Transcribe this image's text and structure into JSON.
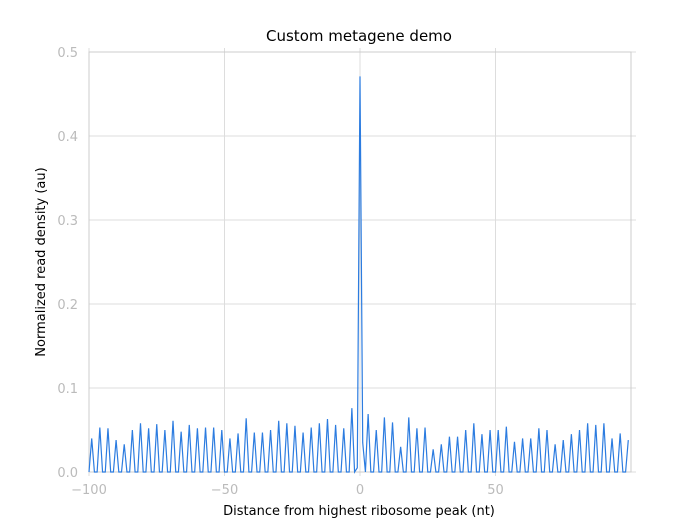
{
  "chart_data": {
    "type": "line",
    "title": "Custom metagene demo",
    "x_label": "Distance from highest ribosome peak (nt)",
    "y_label": "Normalized read density (au)",
    "color": "#2c7ce0",
    "grid": true,
    "xlim": [
      -100,
      100
    ],
    "ylim": [
      0,
      0.5
    ],
    "xticks": [
      {
        "value": -100,
        "label": "−100"
      },
      {
        "value": -50,
        "label": "−50"
      },
      0,
      50
    ],
    "yticks": [
      {
        "value": 0,
        "label": "0.0"
      },
      0.1,
      0.2,
      0.3,
      0.4,
      0.5
    ],
    "x": [
      -100,
      -99,
      -98,
      -97,
      -96,
      -95,
      -94,
      -93,
      -92,
      -91,
      -90,
      -89,
      -88,
      -87,
      -86,
      -85,
      -84,
      -83,
      -82,
      -81,
      -80,
      -79,
      -78,
      -77,
      -76,
      -75,
      -74,
      -73,
      -72,
      -71,
      -70,
      -69,
      -68,
      -67,
      -66,
      -65,
      -64,
      -63,
      -62,
      -61,
      -60,
      -59,
      -58,
      -57,
      -56,
      -55,
      -54,
      -53,
      -52,
      -51,
      -50,
      -49,
      -48,
      -47,
      -46,
      -45,
      -44,
      -43,
      -42,
      -41,
      -40,
      -39,
      -38,
      -37,
      -36,
      -35,
      -34,
      -33,
      -32,
      -31,
      -30,
      -29,
      -28,
      -27,
      -26,
      -25,
      -24,
      -23,
      -22,
      -21,
      -20,
      -19,
      -18,
      -17,
      -16,
      -15,
      -14,
      -13,
      -12,
      -11,
      -10,
      -9,
      -8,
      -7,
      -6,
      -5,
      -4,
      -3,
      -2,
      -1,
      0,
      1,
      2,
      3,
      4,
      5,
      6,
      7,
      8,
      9,
      10,
      11,
      12,
      13,
      14,
      15,
      16,
      17,
      18,
      19,
      20,
      21,
      22,
      23,
      24,
      25,
      26,
      27,
      28,
      29,
      30,
      31,
      32,
      33,
      34,
      35,
      36,
      37,
      38,
      39,
      40,
      41,
      42,
      43,
      44,
      45,
      46,
      47,
      48,
      49,
      50,
      51,
      52,
      53,
      54,
      55,
      56,
      57,
      58,
      59,
      60,
      61,
      62,
      63,
      64,
      65,
      66,
      67,
      68,
      69,
      70,
      71,
      72,
      73,
      74,
      75,
      76,
      77,
      78,
      79,
      80,
      81,
      82,
      83,
      84,
      85,
      86,
      87,
      88,
      89,
      90,
      91,
      92,
      93,
      94,
      95,
      96,
      97,
      98,
      99
    ],
    "values": [
      0,
      0.04,
      0,
      0,
      0.053,
      0,
      0,
      0.052,
      0,
      0,
      0.038,
      0,
      0,
      0.033,
      0,
      0,
      0.05,
      0,
      0,
      0.058,
      0,
      0,
      0.052,
      0,
      0,
      0.057,
      0,
      0,
      0.05,
      0,
      0,
      0.061,
      0,
      0,
      0.048,
      0,
      0,
      0.056,
      0,
      0,
      0.052,
      0,
      0,
      0.053,
      0,
      0,
      0.053,
      0,
      0,
      0.05,
      0,
      0,
      0.04,
      0,
      0,
      0.046,
      0,
      0,
      0.064,
      0,
      0,
      0.047,
      0,
      0,
      0.047,
      0,
      0,
      0.05,
      0,
      0,
      0.061,
      0,
      0,
      0.058,
      0,
      0,
      0.055,
      0,
      0,
      0.047,
      0,
      0,
      0.053,
      0,
      0,
      0.058,
      0,
      0,
      0.063,
      0,
      0,
      0.056,
      0,
      0,
      0.052,
      0,
      0,
      0.076,
      0,
      0.005,
      0.471,
      0.035,
      0,
      0.069,
      0,
      0,
      0.05,
      0,
      0,
      0.065,
      0,
      0,
      0.059,
      0,
      0,
      0.03,
      0,
      0,
      0.065,
      0,
      0,
      0.052,
      0,
      0,
      0.053,
      0,
      0,
      0.027,
      0,
      0,
      0.033,
      0,
      0,
      0.042,
      0,
      0,
      0.042,
      0,
      0,
      0.05,
      0,
      0,
      0.058,
      0,
      0,
      0.045,
      0,
      0,
      0.05,
      0,
      0,
      0.05,
      0,
      0,
      0.054,
      0,
      0,
      0.036,
      0,
      0,
      0.04,
      0,
      0,
      0.04,
      0,
      0,
      0.052,
      0,
      0,
      0.05,
      0,
      0,
      0.033,
      0,
      0,
      0.038,
      0,
      0,
      0.045,
      0,
      0,
      0.05,
      0,
      0,
      0.058,
      0,
      0,
      0.056,
      0,
      0,
      0.058,
      0,
      0,
      0.04,
      0,
      0,
      0.046,
      0,
      0,
      0.038
    ]
  }
}
